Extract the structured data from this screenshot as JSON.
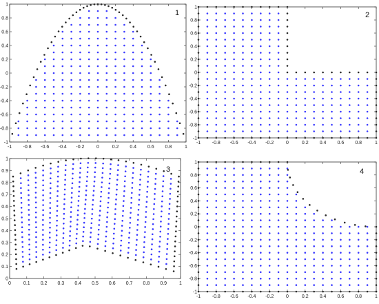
{
  "colors": {
    "interior": "#3b3bff",
    "boundary": "#2b2b2b",
    "frame": "#333333"
  },
  "chart_data": [
    {
      "type": "scatter",
      "panel_label": "1",
      "shape": "parabola",
      "xlim": [
        -1,
        1
      ],
      "ylim": [
        -1,
        1
      ],
      "xticks": [
        "-1",
        "-0.8",
        "-0.6",
        "-0.4",
        "-0.2",
        "0",
        "0.2",
        "0.4",
        "0.6",
        "0.8",
        "1"
      ],
      "yticks": [
        "-1",
        "-0.8",
        "-0.6",
        "-0.4",
        "-0.2",
        "0",
        "0.2",
        "0.4",
        "0.6",
        "0.8",
        "1"
      ],
      "series": [
        {
          "role": "interior",
          "description_of_region": "y <= 1 - 2x^2, y >= -0.9",
          "grid_step": 0.1
        },
        {
          "role": "boundary",
          "curve": "y = 1 - 2x^2"
        }
      ]
    },
    {
      "type": "scatter",
      "panel_label": "2",
      "shape": "L-domain",
      "xlim": [
        -1,
        1
      ],
      "ylim": [
        -1,
        1
      ],
      "xticks": [
        "-1",
        "-0.8",
        "-0.6",
        "-0.4",
        "-0.2",
        "0",
        "0.2",
        "0.4",
        "0.6",
        "0.8",
        "1"
      ],
      "yticks": [
        "-1",
        "-0.8",
        "-0.6",
        "-0.4",
        "-0.2",
        "0",
        "0.2",
        "0.4",
        "0.6",
        "0.8",
        "1"
      ],
      "series": [
        {
          "role": "interior",
          "grid_step": 0.1
        },
        {
          "role": "boundary",
          "polyline": [
            [
              -1,
              1
            ],
            [
              0,
              1
            ],
            [
              0,
              0
            ],
            [
              1,
              0
            ],
            [
              1,
              -1
            ],
            [
              -1,
              -1
            ],
            [
              -1,
              1
            ]
          ]
        }
      ]
    },
    {
      "type": "scatter",
      "panel_label": "3",
      "shape": "curved-quadrilateral",
      "xlim": [
        0,
        1
      ],
      "ylim": [
        0,
        1
      ],
      "xticks": [
        "0",
        "0.1",
        "0.2",
        "0.3",
        "0.4",
        "0.5",
        "0.6",
        "0.7",
        "0.8",
        "0.9",
        "1"
      ],
      "yticks": [
        "0",
        "0.1",
        "0.2",
        "0.3",
        "0.4",
        "0.5",
        "0.6",
        "0.7",
        "0.8",
        "0.9",
        "1"
      ],
      "series": [
        {
          "role": "interior"
        },
        {
          "role": "boundary",
          "corners": [
            [
              0.04,
              0.08
            ],
            [
              0.44,
              0.28
            ],
            [
              0.96,
              0.06
            ],
            [
              0.99,
              0.85
            ]
          ],
          "top_arc_peak": [
            0.42,
            1.0
          ]
        }
      ]
    },
    {
      "type": "scatter",
      "panel_label": "4",
      "shape": "square-with-circular-cutout",
      "xlim": [
        -1,
        1
      ],
      "ylim": [
        -1,
        1
      ],
      "xticks": [
        "-1",
        "-0.8",
        "-0.6",
        "-0.4",
        "-0.2",
        "0",
        "0.2",
        "0.4",
        "0.6",
        "0.8",
        "1"
      ],
      "yticks": [
        "-1",
        "-0.8",
        "-0.6",
        "-0.4",
        "-0.2",
        "0",
        "0.2",
        "0.4",
        "0.6",
        "0.8",
        "1"
      ],
      "series": [
        {
          "role": "interior",
          "grid_step": 0.1
        },
        {
          "role": "boundary",
          "arc_center": [
            1,
            1
          ],
          "arc_radius": 1
        }
      ]
    }
  ]
}
